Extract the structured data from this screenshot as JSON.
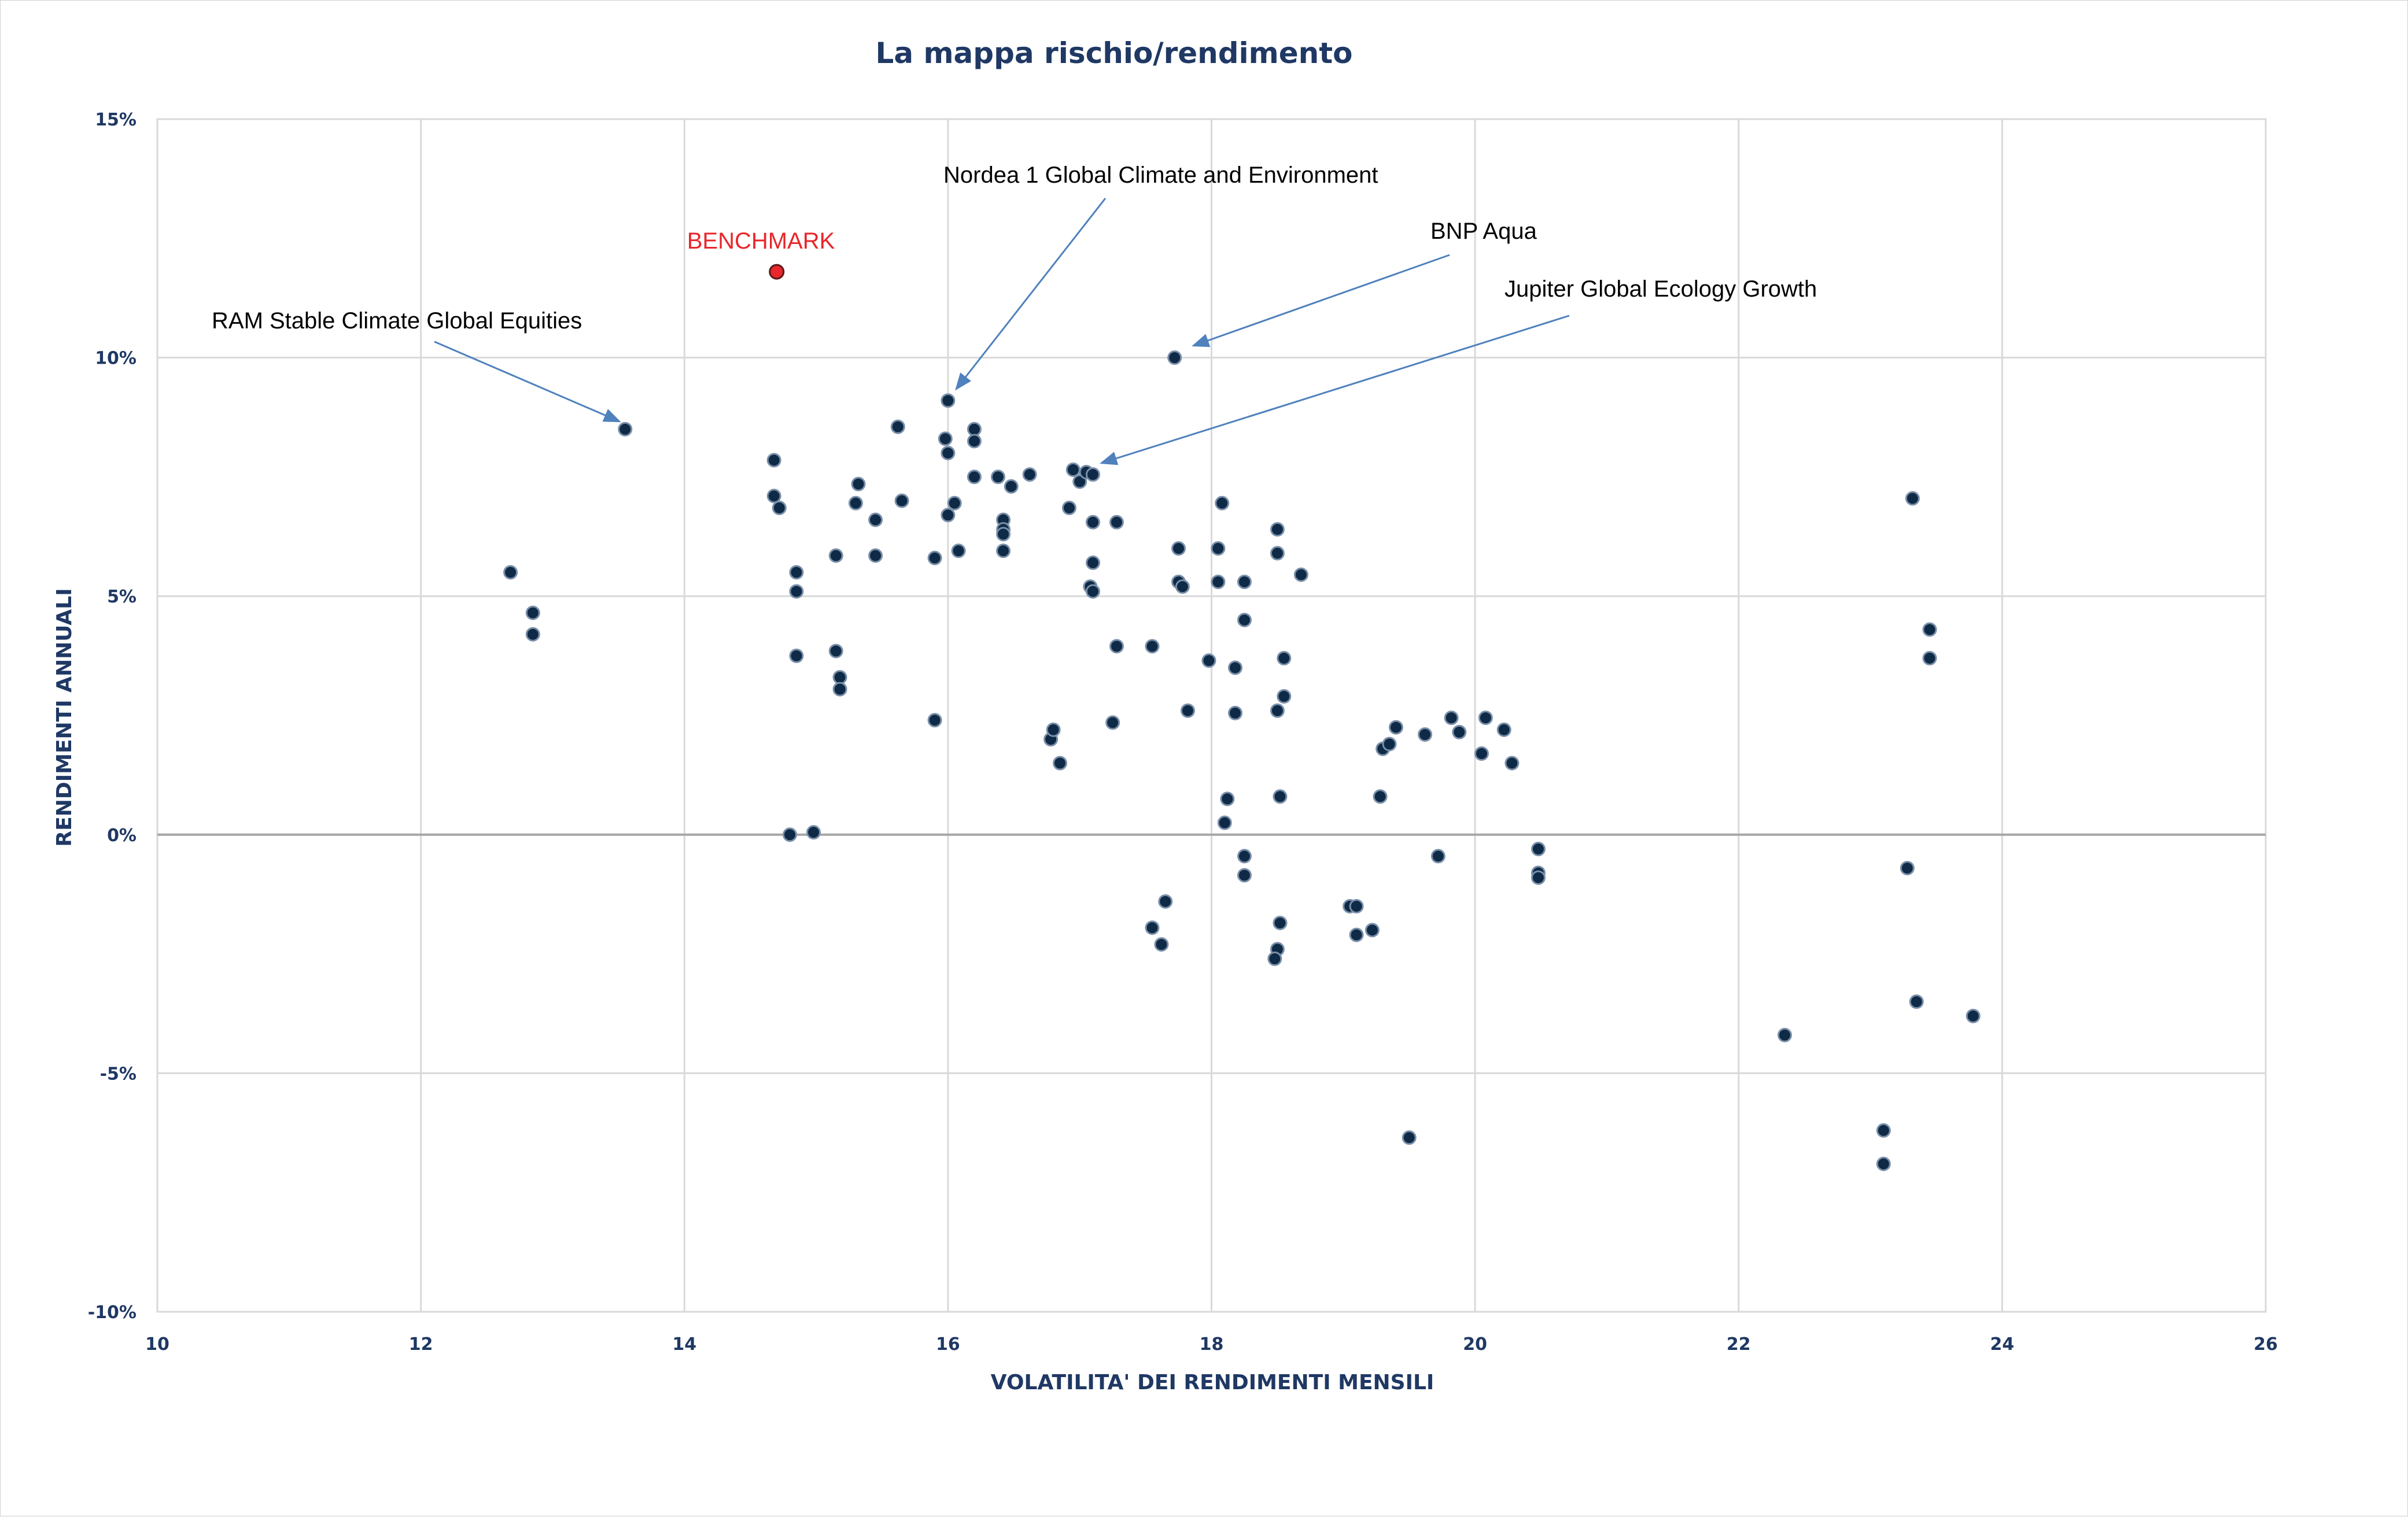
{
  "chart_data": {
    "type": "scatter",
    "title": "La mappa rischio/rendimento",
    "xlabel": "VOLATILITA' DEI RENDIMENTI MENSILI",
    "ylabel": "RENDIMENTI ANNUALI",
    "xlim": [
      10,
      26
    ],
    "ylim": [
      -10,
      15
    ],
    "xticks": [
      "10",
      "12",
      "14",
      "16",
      "18",
      "20",
      "22",
      "24",
      "26"
    ],
    "yticks": [
      "-10%",
      "-5%",
      "0%",
      "5%",
      "10%",
      "15%"
    ],
    "grid": true,
    "legend": "none",
    "colors": {
      "point": "#0e2a47",
      "point_edge": "#7a8fa8",
      "benchmark": "#e8262b",
      "arrow": "#4f81bd",
      "grid": "#d9d9d9",
      "text_axis": "#1f3864"
    },
    "benchmark": {
      "label": "BENCHMARK",
      "x": 14.7,
      "y": 11.8
    },
    "annotations": [
      {
        "text": "RAM Stable Climate Global Equities",
        "x": 13.55,
        "y": 8.5
      },
      {
        "text": "Nordea 1 Global Climate and Environment",
        "x": 16.0,
        "y": 9.1
      },
      {
        "text": "BNP Aqua",
        "x": 17.7,
        "y": 10.0
      },
      {
        "text": "Jupiter Global Ecology Growth",
        "x": 17.05,
        "y": 7.6
      }
    ],
    "points": [
      [
        13.55,
        8.5
      ],
      [
        12.68,
        5.5
      ],
      [
        12.85,
        4.65
      ],
      [
        12.85,
        4.2
      ],
      [
        14.68,
        7.85
      ],
      [
        14.68,
        7.1
      ],
      [
        14.72,
        6.85
      ],
      [
        14.85,
        5.5
      ],
      [
        14.85,
        5.1
      ],
      [
        14.85,
        3.75
      ],
      [
        14.8,
        0.0
      ],
      [
        14.98,
        0.05
      ],
      [
        15.15,
        5.85
      ],
      [
        15.15,
        3.85
      ],
      [
        15.18,
        3.3
      ],
      [
        15.18,
        3.05
      ],
      [
        15.3,
        6.95
      ],
      [
        15.32,
        7.35
      ],
      [
        15.45,
        6.6
      ],
      [
        15.45,
        5.85
      ],
      [
        15.62,
        8.55
      ],
      [
        15.65,
        7.0
      ],
      [
        15.9,
        5.8
      ],
      [
        15.9,
        2.4
      ],
      [
        16.0,
        9.1
      ],
      [
        15.98,
        8.3
      ],
      [
        16.0,
        8.0
      ],
      [
        16.0,
        6.7
      ],
      [
        16.05,
        6.95
      ],
      [
        16.08,
        5.95
      ],
      [
        16.2,
        8.5
      ],
      [
        16.2,
        8.25
      ],
      [
        16.2,
        7.5
      ],
      [
        16.38,
        7.5
      ],
      [
        16.42,
        6.6
      ],
      [
        16.42,
        6.4
      ],
      [
        16.42,
        6.3
      ],
      [
        16.42,
        5.95
      ],
      [
        16.48,
        7.3
      ],
      [
        16.62,
        7.55
      ],
      [
        16.92,
        6.85
      ],
      [
        16.95,
        7.65
      ],
      [
        17.0,
        7.4
      ],
      [
        17.05,
        7.6
      ],
      [
        17.1,
        7.55
      ],
      [
        17.1,
        6.55
      ],
      [
        17.1,
        5.7
      ],
      [
        17.08,
        5.2
      ],
      [
        17.1,
        5.1
      ],
      [
        17.28,
        6.55
      ],
      [
        17.28,
        3.95
      ],
      [
        16.78,
        2.0
      ],
      [
        16.8,
        2.2
      ],
      [
        16.85,
        1.5
      ],
      [
        17.25,
        2.35
      ],
      [
        17.55,
        3.95
      ],
      [
        17.75,
        6.0
      ],
      [
        17.75,
        5.3
      ],
      [
        17.78,
        5.2
      ],
      [
        17.82,
        2.6
      ],
      [
        17.72,
        10.0
      ],
      [
        17.98,
        3.65
      ],
      [
        18.05,
        6.0
      ],
      [
        18.05,
        5.3
      ],
      [
        18.08,
        6.95
      ],
      [
        18.18,
        3.5
      ],
      [
        18.18,
        2.55
      ],
      [
        18.25,
        5.3
      ],
      [
        18.25,
        4.5
      ],
      [
        18.5,
        6.4
      ],
      [
        18.5,
        5.9
      ],
      [
        18.5,
        2.6
      ],
      [
        18.55,
        3.7
      ],
      [
        18.55,
        2.9
      ],
      [
        18.68,
        5.45
      ],
      [
        18.12,
        0.75
      ],
      [
        18.1,
        0.25
      ],
      [
        18.52,
        0.8
      ],
      [
        18.25,
        -0.45
      ],
      [
        18.25,
        -0.85
      ],
      [
        17.65,
        -1.4
      ],
      [
        17.55,
        -1.95
      ],
      [
        17.62,
        -2.3
      ],
      [
        18.52,
        -1.85
      ],
      [
        18.5,
        -2.4
      ],
      [
        18.48,
        -2.6
      ],
      [
        19.05,
        -1.5
      ],
      [
        19.1,
        -1.5
      ],
      [
        19.1,
        -2.1
      ],
      [
        19.22,
        -2.0
      ],
      [
        19.28,
        0.8
      ],
      [
        19.3,
        1.8
      ],
      [
        19.35,
        1.9
      ],
      [
        19.4,
        2.25
      ],
      [
        19.62,
        2.1
      ],
      [
        19.82,
        2.45
      ],
      [
        19.88,
        2.15
      ],
      [
        19.72,
        -0.45
      ],
      [
        19.5,
        -6.35
      ],
      [
        20.05,
        1.7
      ],
      [
        20.08,
        2.45
      ],
      [
        20.22,
        2.2
      ],
      [
        20.28,
        1.5
      ],
      [
        20.48,
        -0.3
      ],
      [
        20.48,
        -0.8
      ],
      [
        20.48,
        -0.9
      ],
      [
        22.35,
        -4.2
      ],
      [
        23.1,
        -6.2
      ],
      [
        23.1,
        -6.9
      ],
      [
        23.28,
        -0.7
      ],
      [
        23.32,
        7.05
      ],
      [
        23.35,
        -3.5
      ],
      [
        23.45,
        4.3
      ],
      [
        23.45,
        3.7
      ],
      [
        23.78,
        -3.8
      ]
    ]
  }
}
